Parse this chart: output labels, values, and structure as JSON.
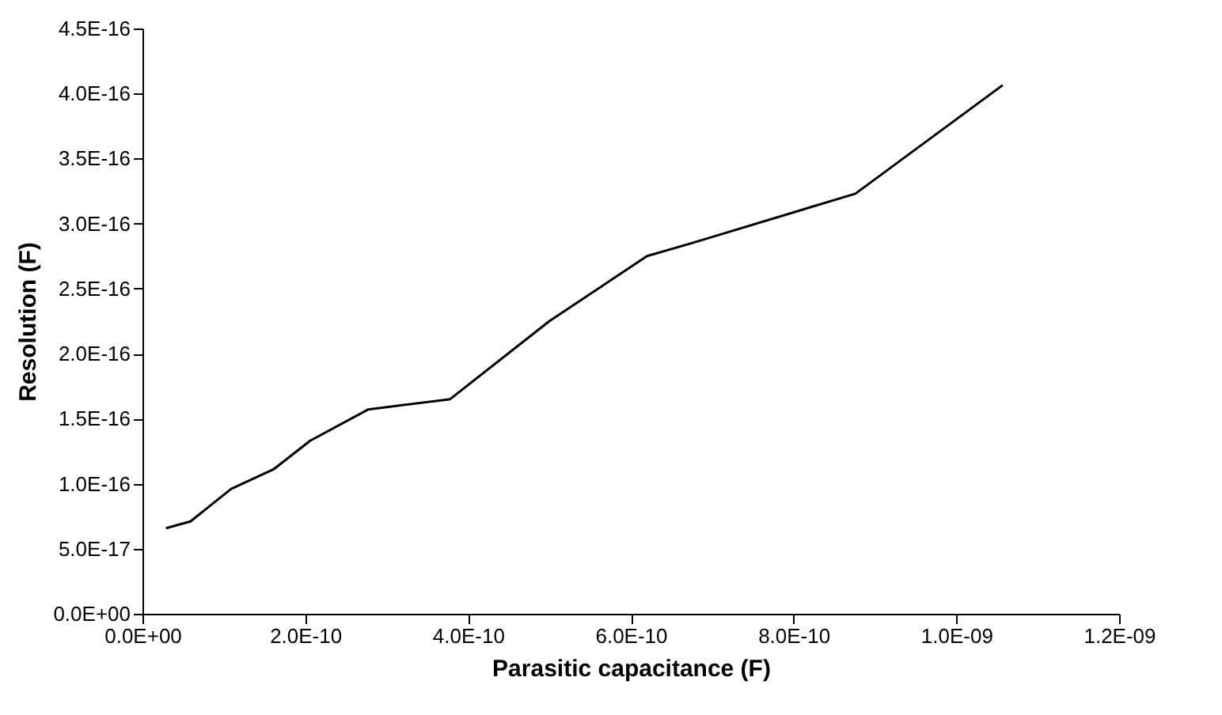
{
  "chart_data": {
    "type": "line",
    "xlabel": "Parasitic capacitance (F)",
    "ylabel": "Resolution (F)",
    "x": [
      3e-11,
      5.9e-11,
      1.09e-10,
      1.61e-10,
      2.06e-10,
      2.77e-10,
      3.78e-10,
      5e-10,
      6.2e-10,
      6.75e-10,
      8.76e-10,
      1.056e-09
    ],
    "series": [
      {
        "color": "#000000",
        "values": [
          6.6e-17,
          7.1e-17,
          9.6e-17,
          1.11e-16,
          1.33e-16,
          1.57e-16,
          1.65e-16,
          2.25e-16,
          2.75e-16,
          2.85e-16,
          3.23e-16,
          4.06e-16
        ]
      }
    ],
    "xlim": [
      0,
      1.2e-09
    ],
    "xticks": [
      {
        "value": 0,
        "label": "0.0E+00"
      },
      {
        "value": 2e-10,
        "label": "2.0E-10"
      },
      {
        "value": 4e-10,
        "label": "4.0E-10"
      },
      {
        "value": 6e-10,
        "label": "6.0E-10"
      },
      {
        "value": 8e-10,
        "label": "8.0E-10"
      },
      {
        "value": 1e-09,
        "label": "1.0E-09"
      },
      {
        "value": 1.2e-09,
        "label": "1.2E-09"
      }
    ],
    "ylim": [
      0,
      4.5e-16
    ],
    "yticks": [
      {
        "value": 0,
        "label": "0.0E+00"
      },
      {
        "value": 5e-17,
        "label": "5.0E-17"
      },
      {
        "value": 1e-16,
        "label": "1.0E-16"
      },
      {
        "value": 1.5e-16,
        "label": "1.5E-16"
      },
      {
        "value": 2e-16,
        "label": "2.0E-16"
      },
      {
        "value": 2.5e-16,
        "label": "2.5E-16"
      },
      {
        "value": 3e-16,
        "label": "3.0E-16"
      },
      {
        "value": 3.5e-16,
        "label": "3.5E-16"
      },
      {
        "value": 4e-16,
        "label": "4.0E-16"
      },
      {
        "value": 4.5e-16,
        "label": "4.5E-16"
      }
    ],
    "grid": false,
    "marker": "none",
    "line_style": "solid"
  }
}
